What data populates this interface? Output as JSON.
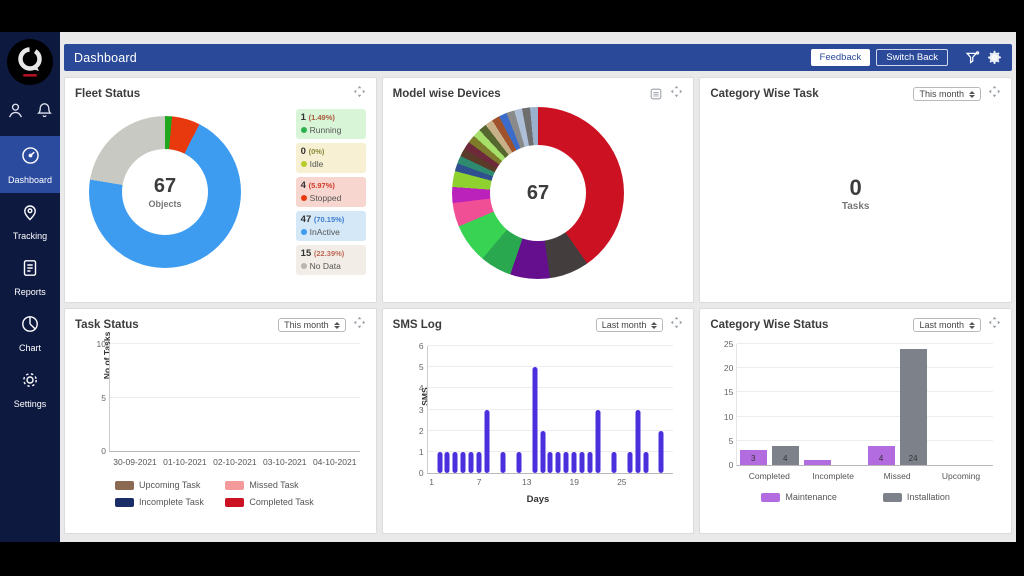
{
  "header": {
    "title": "Dashboard",
    "feedback": "Feedback",
    "switch_back": "Switch Back"
  },
  "sidebar": {
    "items": [
      {
        "label": "Dashboard",
        "icon": "speedometer",
        "active": true
      },
      {
        "label": "Tracking",
        "icon": "pin",
        "active": false
      },
      {
        "label": "Reports",
        "icon": "report",
        "active": false
      },
      {
        "label": "Chart",
        "icon": "pie",
        "active": false
      },
      {
        "label": "Settings",
        "icon": "gear",
        "active": false
      }
    ]
  },
  "panels": {
    "fleet_status": {
      "title": "Fleet Status",
      "center_value": "67",
      "center_label": "Objects"
    },
    "model_devices": {
      "title": "Model wise Devices",
      "center_value": "67"
    },
    "category_task": {
      "title": "Category Wise Task",
      "range": "This month",
      "center_value": "0",
      "center_label": "Tasks"
    },
    "task_status": {
      "title": "Task Status",
      "range": "This month",
      "ylabel": "No of Tasks"
    },
    "sms_log": {
      "title": "SMS Log",
      "range": "Last month",
      "ylabel": "SMS",
      "xlabel": "Days"
    },
    "category_status": {
      "title": "Category Wise Status",
      "range": "Last month"
    }
  },
  "chart_data": {
    "fleet_donut": {
      "type": "pie",
      "title": "Fleet Status",
      "center_value": 67,
      "center_label": "Objects",
      "segments": [
        {
          "label": "Running",
          "count": 1,
          "pct": "(1.49%)",
          "color": "#1fa81f",
          "box_bg": "#d9f5d8",
          "dot": "#2bb24c",
          "pct_color": "#a85a3c"
        },
        {
          "label": "Idle",
          "count": 0,
          "pct": "(0%)",
          "color": "#b5cc2a",
          "box_bg": "#f7f0d2",
          "dot": "#b5cc2a",
          "pct_color": "#8a8a3c"
        },
        {
          "label": "Stopped",
          "count": 4,
          "pct": "(5.97%)",
          "color": "#e8390e",
          "box_bg": "#f7d6d0",
          "dot": "#e8390e",
          "pct_color": "#d03a2a"
        },
        {
          "label": "InActive",
          "count": 47,
          "pct": "(70.15%)",
          "color": "#3d9bf0",
          "box_bg": "#d4e8f7",
          "dot": "#3d9bf0",
          "pct_color": "#3d7bd0"
        },
        {
          "label": "No Data",
          "count": 15,
          "pct": "(22.39%)",
          "color": "#c9c9c3",
          "box_bg": "#f2ede6",
          "dot": "#bab5ad",
          "pct_color": "#c06a5a"
        }
      ]
    },
    "model_donut": {
      "type": "pie",
      "title": "Model wise Devices",
      "center_value": 67,
      "segments": [
        {
          "value": 27,
          "color": "#cc1122"
        },
        {
          "value": 5,
          "color": "#433d3d"
        },
        {
          "value": 5,
          "color": "#650f8e"
        },
        {
          "value": 4,
          "color": "#2aa84f"
        },
        {
          "value": 5,
          "color": "#39d353"
        },
        {
          "value": 3,
          "color": "#f04f96"
        },
        {
          "value": 2,
          "color": "#bb22bb"
        },
        {
          "value": 2,
          "color": "#8fd12f"
        },
        {
          "value": 1,
          "color": "#2f4f8f"
        },
        {
          "value": 1,
          "color": "#2e8b6f"
        },
        {
          "value": 1,
          "color": "#5a3a28"
        },
        {
          "value": 1,
          "color": "#6e2a3a"
        },
        {
          "value": 1,
          "color": "#7c7c2a"
        },
        {
          "value": 1,
          "color": "#a6e06a"
        },
        {
          "value": 1,
          "color": "#55662f"
        },
        {
          "value": 1,
          "color": "#c8b089"
        },
        {
          "value": 1,
          "color": "#a0522d"
        },
        {
          "value": 1,
          "color": "#3b6cc9"
        },
        {
          "value": 1,
          "color": "#8a8a8a"
        },
        {
          "value": 1,
          "color": "#aebfd8"
        },
        {
          "value": 1,
          "color": "#6e6e6e"
        },
        {
          "value": 1,
          "color": "#9ab0cc"
        }
      ]
    },
    "task_status": {
      "type": "bar",
      "title": "Task Status",
      "ylabel": "No of Tasks",
      "ylim": [
        0,
        10
      ],
      "yticks": [
        0,
        5,
        10
      ],
      "categories": [
        "30-09-2021",
        "01-10-2021",
        "02-10-2021",
        "03-10-2021",
        "04-10-2021"
      ],
      "series": [
        {
          "name": "Upcoming Task",
          "color": "#8a6a52",
          "values": [
            0,
            0,
            0,
            0,
            0
          ]
        },
        {
          "name": "Missed Task",
          "color": "#f59a9a",
          "values": [
            0,
            0,
            0,
            0,
            0
          ]
        },
        {
          "name": "Incomplete Task",
          "color": "#1b2d66",
          "values": [
            0,
            0,
            0,
            0,
            0
          ]
        },
        {
          "name": "Completed Task",
          "color": "#cc1122",
          "values": [
            0,
            0,
            0,
            0,
            0
          ]
        }
      ]
    },
    "sms_log": {
      "type": "bar",
      "title": "SMS Log",
      "ylabel": "SMS",
      "xlabel": "Days",
      "ylim": [
        0,
        6
      ],
      "yticks": [
        0,
        1,
        2,
        3,
        4,
        5,
        6
      ],
      "xticks": [
        1,
        7,
        13,
        19,
        25
      ],
      "xrange": [
        1,
        31
      ],
      "bar_color": "#4a30dd",
      "days": [
        2,
        3,
        4,
        5,
        6,
        7,
        8,
        10,
        12,
        14,
        15,
        16,
        17,
        18,
        19,
        20,
        21,
        22,
        24,
        26,
        27,
        28,
        30
      ],
      "values": [
        1,
        1,
        1,
        1,
        1,
        1,
        3,
        1,
        1,
        5,
        2,
        1,
        1,
        1,
        1,
        1,
        1,
        3,
        1,
        1,
        3,
        1,
        2
      ]
    },
    "category_status": {
      "type": "bar",
      "title": "Category Wise Status",
      "ylim": [
        0,
        25
      ],
      "yticks": [
        0,
        5,
        10,
        15,
        20,
        25
      ],
      "categories": [
        "Completed",
        "Incomplete",
        "Missed",
        "Upcoming"
      ],
      "series": [
        {
          "name": "Maintenance",
          "color": "#b36be0",
          "values": [
            3,
            1,
            4,
            0
          ]
        },
        {
          "name": "Installation",
          "color": "#7d828a",
          "values": [
            4,
            0,
            24,
            0
          ]
        }
      ]
    }
  }
}
